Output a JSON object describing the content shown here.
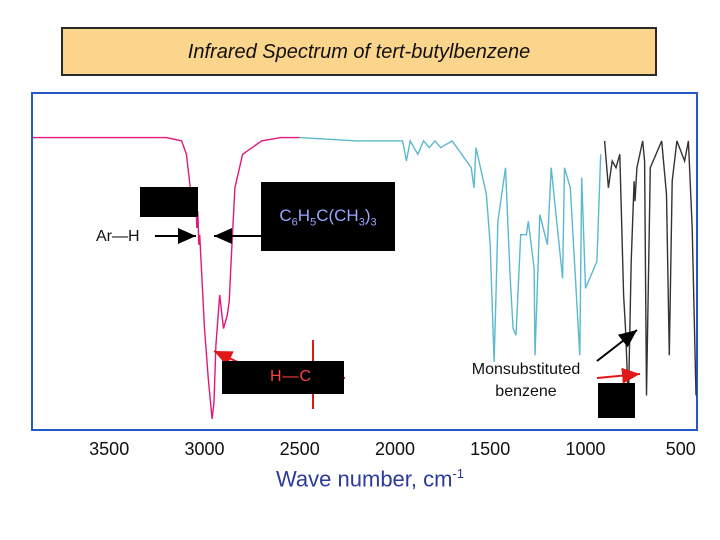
{
  "title": "Infrared Spectrum of tert-butylbenzene",
  "formula": {
    "parts": [
      "C",
      "6",
      "H",
      "5",
      "C(CH",
      "3",
      ")",
      "3"
    ]
  },
  "annotations": {
    "ar_h": "Ar—H",
    "h_c": "H—C",
    "monosubstituted_line1": "Monsubstituted",
    "monosubstituted_line2": "benzene"
  },
  "colors": {
    "title_bg": "#fcd58c",
    "frame": "#2557c8",
    "trace_pink": "#e0187a",
    "trace_cyan": "#5bb8d0",
    "trace_dark": "#333333",
    "arrow_red": "#e01818",
    "formula_text": "#9aa6ff",
    "hc_text": "#ff4141"
  },
  "chart_data": {
    "type": "line",
    "title": "Infrared Spectrum of tert-butylbenzene",
    "xlabel": "Wave number, cm",
    "xlabel_superscript": "-1",
    "ylabel": "",
    "x_reversed": true,
    "xlim": [
      3900,
      420
    ],
    "ylim": [
      0,
      100
    ],
    "x_ticks": [
      3500,
      3000,
      2500,
      2000,
      1500,
      1000,
      500
    ],
    "series": [
      {
        "color": "#e0187a",
        "x": [
          3900,
          3200,
          3120,
          3095,
          3070,
          3060,
          3045,
          3040,
          3035,
          3030,
          3025,
          3000,
          2980,
          2960,
          2950,
          2940,
          2920,
          2900,
          2880,
          2870,
          2860,
          2840,
          2800,
          2700,
          2600,
          2500
        ],
        "y": [
          87,
          87,
          86,
          82,
          70,
          66,
          68,
          60,
          65,
          55,
          58,
          30,
          15,
          3,
          8,
          25,
          40,
          30,
          34,
          38,
          50,
          72,
          82,
          86,
          87,
          87
        ]
      },
      {
        "color": "#5bb8d0",
        "x": [
          2500,
          2200,
          1960,
          1940,
          1920,
          1880,
          1850,
          1820,
          1790,
          1760,
          1700,
          1650,
          1600,
          1585,
          1575,
          1520,
          1500,
          1480,
          1470,
          1460,
          1420,
          1395,
          1380,
          1365,
          1340,
          1310,
          1300,
          1270,
          1265,
          1240,
          1200,
          1180,
          1120,
          1110,
          1080,
          1030,
          1020,
          1000,
          940,
          920
        ],
        "y": [
          87,
          86,
          86,
          80,
          86,
          82,
          86,
          84,
          86,
          84,
          86,
          82,
          78,
          72,
          84,
          70,
          55,
          20,
          40,
          62,
          78,
          45,
          30,
          28,
          58,
          58,
          62,
          48,
          22,
          64,
          55,
          78,
          45,
          78,
          72,
          22,
          75,
          42,
          50,
          82
        ]
      },
      {
        "color": "#333333",
        "x": [
          900,
          880,
          860,
          840,
          820,
          800,
          790,
          775,
          760,
          745,
          740,
          730,
          700,
          690,
          680,
          660,
          600,
          575,
          560,
          545,
          520,
          480,
          460,
          440,
          420
        ],
        "y": [
          86,
          72,
          80,
          78,
          82,
          40,
          30,
          8,
          50,
          74,
          68,
          78,
          86,
          80,
          10,
          78,
          86,
          70,
          22,
          74,
          86,
          80,
          86,
          60,
          10
        ]
      }
    ]
  }
}
